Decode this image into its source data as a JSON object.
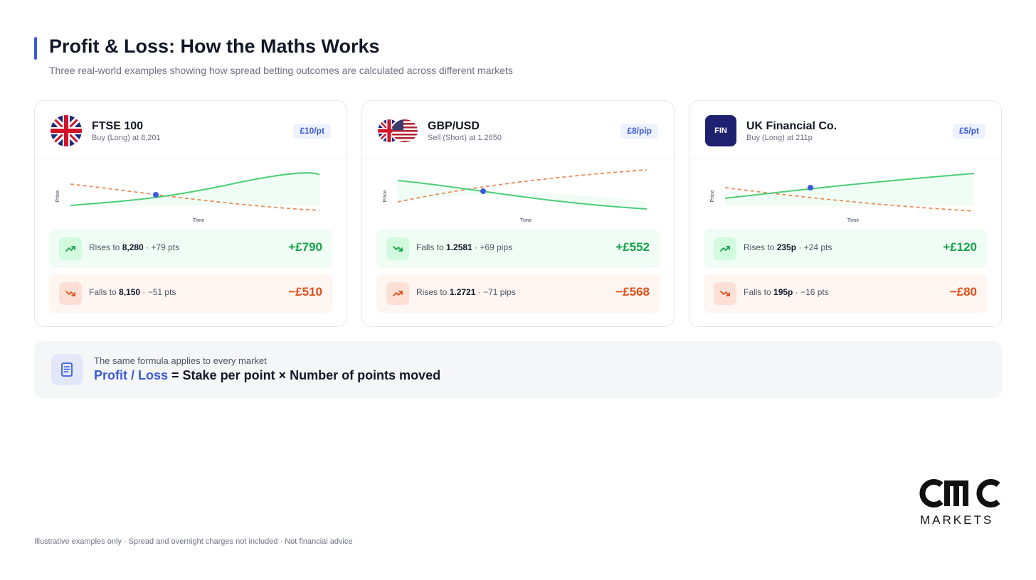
{
  "header": {
    "title": "Profit & Loss: How the Maths Works",
    "subtitle": "Three real-world examples showing how spread betting outcomes are calculated across different markets"
  },
  "colors": {
    "accent": "#3b5bdb",
    "gain": "#16a34a",
    "loss": "#e0501b",
    "dashed": "#ea8a55",
    "solid": "#4cce77"
  },
  "cards": [
    {
      "name": "FTSE 100",
      "position": "Buy (Long) at 8,201",
      "stake": "£10/pt",
      "chart": {
        "y_label": "Price",
        "x_label": "Time"
      },
      "up": {
        "prefix": "Rises to",
        "value": "8,280",
        "suffix": "· +79 pts",
        "result": "+£790"
      },
      "down": {
        "prefix": "Falls to",
        "value": "8,150",
        "suffix": "· −51 pts",
        "result": "−£510"
      }
    },
    {
      "name": "GBP/USD",
      "position": "Sell (Short) at 1.2650",
      "stake": "£8/pip",
      "chart": {
        "y_label": "Price",
        "x_label": "Time"
      },
      "up": {
        "prefix": "Falls to",
        "value": "1.2581",
        "suffix": "· +69 pips",
        "result": "+£552"
      },
      "down": {
        "prefix": "Rises to",
        "value": "1.2721",
        "suffix": "· −71 pips",
        "result": "−£568"
      }
    },
    {
      "name": "UK Financial Co.",
      "logo_text": "FIN",
      "position": "Buy (Long) at 211p",
      "stake": "£5/pt",
      "chart": {
        "y_label": "Price",
        "x_label": "Time"
      },
      "up": {
        "prefix": "Rises to",
        "value": "235p",
        "suffix": "· +24 pts",
        "result": "+£120"
      },
      "down": {
        "prefix": "Falls to",
        "value": "195p",
        "suffix": "· −16 pts",
        "result": "−£80"
      }
    }
  ],
  "formula": {
    "caption": "The same formula applies to every market",
    "highlight": "Profit / Loss",
    "rest": " = Stake per point × Number of points moved"
  },
  "brand": {
    "mark": "CMC",
    "sub": "MARKETS"
  },
  "footer": "Illustrative examples only · Spread and overnight charges not included · Not financial advice"
}
